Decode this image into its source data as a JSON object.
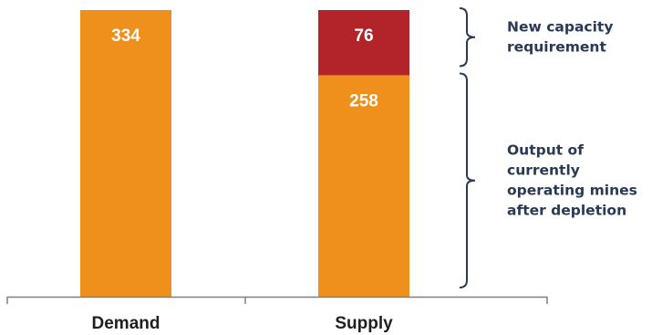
{
  "chart_data": {
    "type": "bar",
    "stacked": true,
    "categories": [
      "Demand",
      "Supply"
    ],
    "series": [
      {
        "values": [
          334,
          258
        ],
        "color": "#f0901c"
      },
      {
        "values": [
          0,
          76
        ],
        "color": "#b3242a"
      }
    ],
    "title": "",
    "xlabel": "",
    "ylabel": "",
    "ylim": [
      0,
      334
    ],
    "grid": false,
    "annotations": [
      {
        "lines": [
          "New capacity",
          "requirement"
        ],
        "target": "Supply",
        "series_index": 1
      },
      {
        "lines": [
          "Output of",
          "currently",
          "operating mines",
          "after depletion"
        ],
        "target": "Supply",
        "series_index": 0
      }
    ],
    "bracket_color": "#2a3a55",
    "axis_color": "#7f7f7f"
  }
}
